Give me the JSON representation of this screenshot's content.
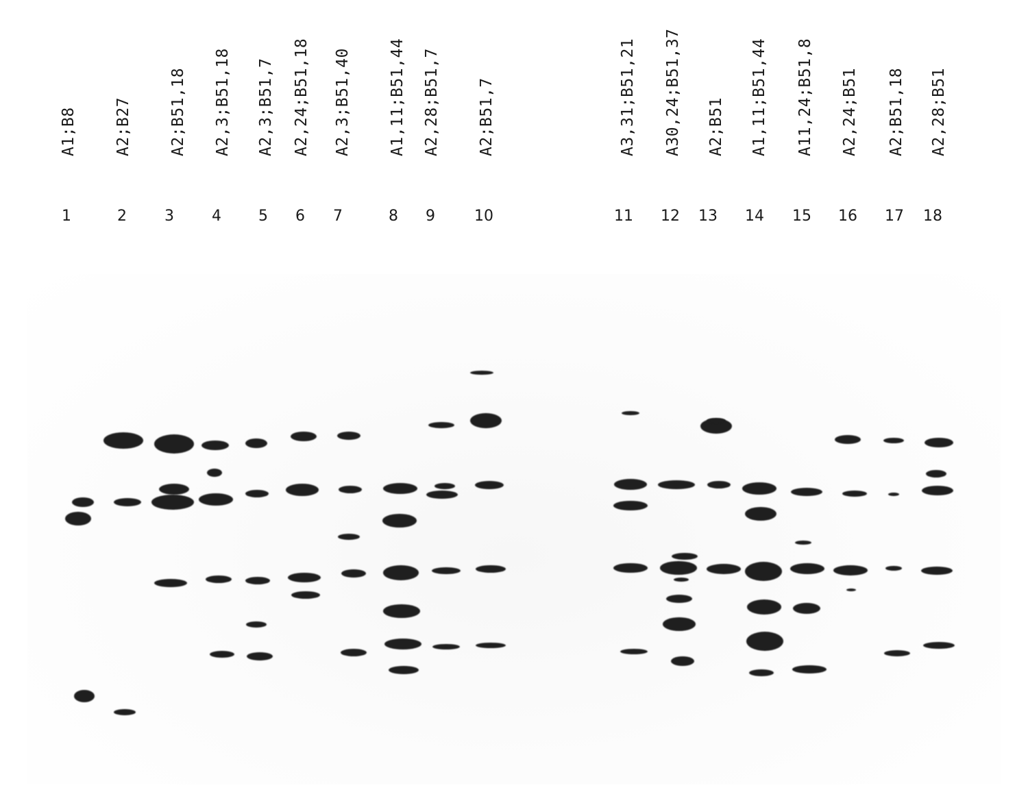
{
  "lanes": [
    {
      "number": "1",
      "label": "A1;B8"
    },
    {
      "number": "2",
      "label": "A2;B27"
    },
    {
      "number": "3",
      "label": "A2;B51,18"
    },
    {
      "number": "4",
      "label": "A2,3;B51,18"
    },
    {
      "number": "5",
      "label": "A2,3;B51,7"
    },
    {
      "number": "6",
      "label": "A2,24;B51,18"
    },
    {
      "number": "7",
      "label": "A2,3;B51,40"
    },
    {
      "number": "8",
      "label": "A1,11;B51,44"
    },
    {
      "number": "9",
      "label": "A2,28;B51,7"
    },
    {
      "number": "10",
      "label": "A2;B51,7"
    },
    {
      "number": "11",
      "label": "A3,31;B51,21"
    },
    {
      "number": "12",
      "label": "A30,24;B51,37"
    },
    {
      "number": "13",
      "label": "A2;B51"
    },
    {
      "number": "14",
      "label": "A1,11;B51,44"
    },
    {
      "number": "15",
      "label": "A11,24;B51,8"
    },
    {
      "number": "16",
      "label": "A2,24;B51"
    },
    {
      "number": "17",
      "label": "A2;B51,18"
    },
    {
      "number": "18",
      "label": "A2,28;B51"
    }
  ],
  "colors": {
    "band": "#1f1f1f",
    "background": "#ffffff"
  }
}
